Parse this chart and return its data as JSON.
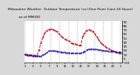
{
  "title": "Milwaukee Weather  Outdoor Temperature (vs) Dew Point (Last 24 Hours)",
  "subtitle_line2": "as of MM/DD",
  "bg_color": "#d8d8d8",
  "plot_bg": "#ffffff",
  "temp_color": "#cc0000",
  "dew_color": "#0000cc",
  "n_points": 49,
  "temp_values": [
    10,
    9,
    8,
    8,
    7,
    7,
    7,
    20,
    38,
    52,
    62,
    68,
    70,
    71,
    70,
    68,
    65,
    60,
    55,
    50,
    47,
    44,
    42,
    38,
    36,
    35,
    33,
    32,
    31,
    55,
    62,
    68,
    70,
    68,
    65,
    60,
    52,
    45,
    38,
    34,
    30,
    26,
    23,
    20,
    18,
    16,
    14,
    13,
    12
  ],
  "dew_values": [
    8,
    7,
    6,
    6,
    5,
    5,
    5,
    5,
    5,
    8,
    10,
    14,
    18,
    18,
    18,
    18,
    17,
    16,
    15,
    14,
    14,
    13,
    13,
    13,
    12,
    12,
    12,
    12,
    12,
    14,
    17,
    20,
    22,
    22,
    22,
    22,
    21,
    20,
    20,
    19,
    18,
    18,
    17,
    17,
    16,
    16,
    15,
    15,
    15
  ],
  "ylim": [
    -10,
    90
  ],
  "yticks": [
    -10,
    0,
    10,
    20,
    30,
    40,
    50,
    60,
    70,
    80,
    90
  ],
  "n_grid_lines": 12,
  "title_fontsize": 3.2,
  "tick_fontsize": 2.8,
  "line_width": 0.7,
  "marker_size": 0.9,
  "x_labels": [
    "1",
    "3",
    "5",
    "7",
    "9",
    "11",
    "13",
    "15",
    "17",
    "19",
    "21",
    "23",
    "1"
  ]
}
